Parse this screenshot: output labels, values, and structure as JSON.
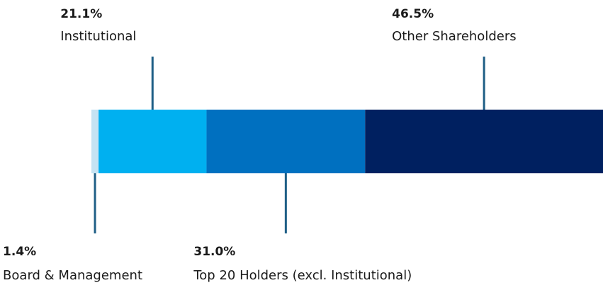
{
  "chart_data": {
    "type": "bar",
    "orientation": "horizontal",
    "stacked": true,
    "series": [
      {
        "name": "Board & Management",
        "color": "#c5e3f3",
        "values": [
          1.4
        ],
        "value_labels": [
          "1.4%"
        ]
      },
      {
        "name": "Institutional",
        "color": "#00b0f0",
        "values": [
          21.1
        ],
        "value_labels": [
          "21.1%"
        ]
      },
      {
        "name": "Top 20 Holders (excl. Institutional)",
        "color": "#0070c0",
        "values": [
          31.0
        ],
        "value_labels": [
          "31.0%"
        ]
      },
      {
        "name": "Other Shareholders",
        "color": "#002060",
        "values": [
          46.5
        ],
        "value_labels": [
          "46.5%"
        ]
      }
    ]
  }
}
